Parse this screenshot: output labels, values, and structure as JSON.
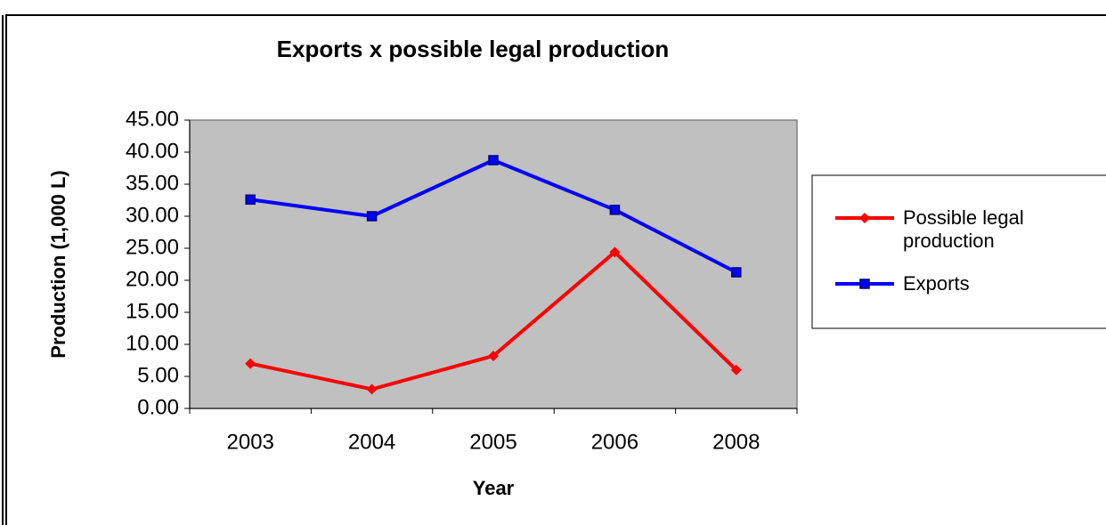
{
  "chart_data": {
    "type": "line",
    "title": "Exports x possible legal production",
    "x_label": "Year",
    "y_label": "Production (1,000 L)",
    "categories": [
      "2003",
      "2004",
      "2005",
      "2006",
      "2008"
    ],
    "series": [
      {
        "name": "Possible legal production",
        "color": "#ff0000",
        "marker": "diamond",
        "values": [
          7.0,
          3.0,
          8.2,
          24.4,
          6.0
        ]
      },
      {
        "name": "Exports",
        "color": "#0000ff",
        "marker": "square",
        "values": [
          32.6,
          30.0,
          38.75,
          31.0,
          21.25
        ]
      }
    ],
    "ylim": [
      0,
      45
    ],
    "yticks": [
      {
        "value": 0,
        "label": "0.00"
      },
      {
        "value": 5,
        "label": "5.00"
      },
      {
        "value": 10,
        "label": "10.00"
      },
      {
        "value": 15,
        "label": "15.00"
      },
      {
        "value": 20,
        "label": "20.00"
      },
      {
        "value": 25,
        "label": "25.00"
      },
      {
        "value": 30,
        "label": "30.00"
      },
      {
        "value": 35,
        "label": "35.00"
      },
      {
        "value": 40,
        "label": "40.00"
      },
      {
        "value": 45,
        "label": "45.00"
      }
    ],
    "plot_background": "#c0c0c0",
    "legend": "right"
  }
}
